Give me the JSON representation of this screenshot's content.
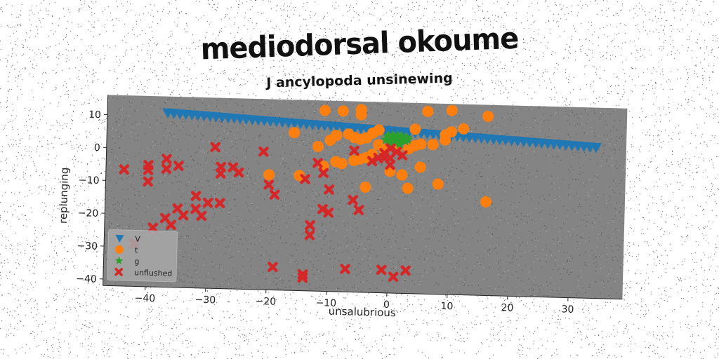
{
  "chart_data": {
    "type": "scatter",
    "title": "mediodorsal okoume",
    "subtitle": "J ancylopoda unsinewing",
    "xlabel": "unsalubrious",
    "ylabel": "replunging",
    "xlim": [
      -47,
      39
    ],
    "ylim": [
      -42,
      16
    ],
    "xticks": [
      -40,
      -30,
      -20,
      -10,
      0,
      10,
      20,
      30
    ],
    "yticks": [
      10,
      0,
      -10,
      -20,
      -30,
      -40
    ],
    "grid": false,
    "legend_position": "lower-left",
    "series": [
      {
        "name": "V",
        "marker": "triangle-down",
        "color": "#1f77b4",
        "points": [
          [
            -37,
            11
          ],
          [
            -36,
            10.9
          ],
          [
            -35,
            10.8
          ],
          [
            -34,
            10.7
          ],
          [
            -33,
            10.6
          ],
          [
            -32,
            10.5
          ],
          [
            -31,
            10.4
          ],
          [
            -30,
            10.3
          ],
          [
            -29,
            10.2
          ],
          [
            -28,
            10.1
          ],
          [
            -27,
            10
          ],
          [
            -26,
            9.9
          ],
          [
            -25,
            9.8
          ],
          [
            -24,
            9.7
          ],
          [
            -23,
            9.6
          ],
          [
            -22,
            9.5
          ],
          [
            -21,
            9.4
          ],
          [
            -20,
            9.3
          ],
          [
            -19,
            9.2
          ],
          [
            -18,
            9.1
          ],
          [
            -17,
            9
          ],
          [
            -16,
            8.9
          ],
          [
            -15,
            8.8
          ],
          [
            -14,
            8.7
          ],
          [
            -13,
            8.6
          ],
          [
            -12,
            8.5
          ],
          [
            -11,
            8.4
          ],
          [
            -10,
            8.3
          ],
          [
            -9,
            8.2
          ],
          [
            -8,
            8.1
          ],
          [
            -7,
            8
          ],
          [
            -6,
            7.9
          ],
          [
            -5,
            7.8
          ],
          [
            -4,
            7.7
          ],
          [
            -3,
            7.6
          ],
          [
            -2,
            7.5
          ],
          [
            -1,
            7.4
          ],
          [
            0,
            7.3
          ],
          [
            1,
            7.2
          ],
          [
            2,
            7.1
          ],
          [
            3,
            7
          ],
          [
            4,
            6.9
          ],
          [
            5,
            6.8
          ],
          [
            6,
            6.7
          ],
          [
            7,
            6.6
          ],
          [
            8,
            6.5
          ],
          [
            9,
            6.4
          ],
          [
            10,
            6.3
          ],
          [
            11,
            6.2
          ],
          [
            12,
            6.1
          ],
          [
            13,
            6
          ],
          [
            14,
            5.9
          ],
          [
            15,
            5.8
          ],
          [
            16,
            5.7
          ],
          [
            17,
            5.6
          ],
          [
            18,
            5.5
          ],
          [
            19,
            5.4
          ],
          [
            20,
            5.3
          ],
          [
            21,
            5.2
          ],
          [
            22,
            5.1
          ],
          [
            23,
            5
          ],
          [
            24,
            4.9
          ],
          [
            25,
            4.8
          ],
          [
            26,
            4.7
          ],
          [
            27,
            4.6
          ],
          [
            28,
            4.5
          ],
          [
            29,
            4.4
          ],
          [
            30,
            4.3
          ],
          [
            31,
            4.2
          ],
          [
            32,
            4.1
          ],
          [
            33,
            4
          ],
          [
            34,
            3.9
          ]
        ]
      },
      {
        "name": "t",
        "marker": "circle",
        "color": "#ff7f0e",
        "points": [
          [
            -11,
            13
          ],
          [
            -8,
            13
          ],
          [
            -5,
            13.5
          ],
          [
            -5,
            12
          ],
          [
            10,
            14
          ],
          [
            16,
            12.5
          ],
          [
            6,
            13.5
          ],
          [
            12,
            8.5
          ],
          [
            10,
            7.5
          ],
          [
            9,
            6.5
          ],
          [
            4,
            8
          ],
          [
            -2,
            7.5
          ],
          [
            -3,
            6.5
          ],
          [
            -4,
            5
          ],
          [
            -5,
            4.5
          ],
          [
            -6,
            5
          ],
          [
            -7,
            6
          ],
          [
            -9,
            5.5
          ],
          [
            -10,
            4
          ],
          [
            -12,
            2
          ],
          [
            -16,
            6
          ],
          [
            -1,
            1.5
          ],
          [
            1,
            2
          ],
          [
            3,
            2
          ],
          [
            4,
            3
          ],
          [
            5,
            3.5
          ],
          [
            7,
            3.5
          ],
          [
            9,
            5
          ],
          [
            -3,
            0
          ],
          [
            -4,
            -1
          ],
          [
            -5,
            -1.5
          ],
          [
            -6,
            -2
          ],
          [
            -8,
            -3
          ],
          [
            -9,
            -2.5
          ],
          [
            -11,
            -4
          ],
          [
            -15,
            -7
          ],
          [
            -20,
            -7
          ],
          [
            -4,
            -10
          ],
          [
            0,
            -5
          ],
          [
            2,
            -6
          ],
          [
            3,
            -10
          ],
          [
            5,
            -3.5
          ],
          [
            8,
            -8.5
          ],
          [
            16,
            -13.5
          ],
          [
            -2,
            3
          ]
        ]
      },
      {
        "name": "g",
        "marker": "star",
        "color": "#2ca02c",
        "points": [
          [
            0,
            5
          ],
          [
            0.5,
            4.8
          ],
          [
            1,
            5.2
          ],
          [
            1.5,
            4.6
          ],
          [
            2,
            5
          ],
          [
            -0.5,
            5.4
          ],
          [
            0.3,
            6
          ],
          [
            1.2,
            4.2
          ],
          [
            2.4,
            4.4
          ],
          [
            -0.3,
            4
          ],
          [
            0.8,
            3.8
          ],
          [
            1.8,
            5.8
          ],
          [
            2.6,
            5.4
          ],
          [
            -0.8,
            4.6
          ],
          [
            0,
            3.6
          ],
          [
            1.5,
            3.4
          ],
          [
            2.8,
            4.8
          ],
          [
            0.2,
            5.6
          ],
          [
            1.1,
            6
          ],
          [
            -0.4,
            5.8
          ]
        ]
      },
      {
        "name": "unflushed",
        "marker": "x",
        "color": "#d62728",
        "points": [
          [
            -44,
            -6.5
          ],
          [
            -40,
            -6.5
          ],
          [
            -40,
            -5
          ],
          [
            -40,
            -10
          ],
          [
            -37,
            -3
          ],
          [
            -37,
            -6
          ],
          [
            -35,
            -5
          ],
          [
            -29,
            1
          ],
          [
            -28,
            -5
          ],
          [
            -28,
            -7
          ],
          [
            -26,
            -5
          ],
          [
            -25,
            -6.5
          ],
          [
            -21,
            0
          ],
          [
            -20,
            -10
          ],
          [
            -19,
            -13
          ],
          [
            -14,
            -8
          ],
          [
            -12,
            -3
          ],
          [
            -11,
            -6
          ],
          [
            -10,
            -11
          ],
          [
            -11,
            -17
          ],
          [
            -10,
            -18
          ],
          [
            -6,
            -14
          ],
          [
            -5,
            -17
          ],
          [
            -3,
            -2
          ],
          [
            -2,
            -1
          ],
          [
            -1,
            -1
          ],
          [
            0,
            -1
          ],
          [
            0,
            -3
          ],
          [
            1,
            1
          ],
          [
            -1,
            0.5
          ],
          [
            0,
            2
          ],
          [
            2,
            0
          ],
          [
            -6,
            1
          ],
          [
            -32,
            -14
          ],
          [
            -32,
            -18
          ],
          [
            -31,
            -20
          ],
          [
            -30,
            -16
          ],
          [
            -28,
            -16
          ],
          [
            -34,
            -20
          ],
          [
            -35,
            -18
          ],
          [
            -36,
            -23
          ],
          [
            -37,
            -21
          ],
          [
            -39,
            -24
          ],
          [
            -42,
            -29
          ],
          [
            -13,
            -22
          ],
          [
            -13,
            -25
          ],
          [
            -19,
            -35
          ],
          [
            -14,
            -37
          ],
          [
            -14,
            -38
          ],
          [
            -7,
            -35
          ],
          [
            -1,
            -35
          ],
          [
            1,
            -37
          ],
          [
            3,
            -35
          ]
        ]
      }
    ]
  }
}
